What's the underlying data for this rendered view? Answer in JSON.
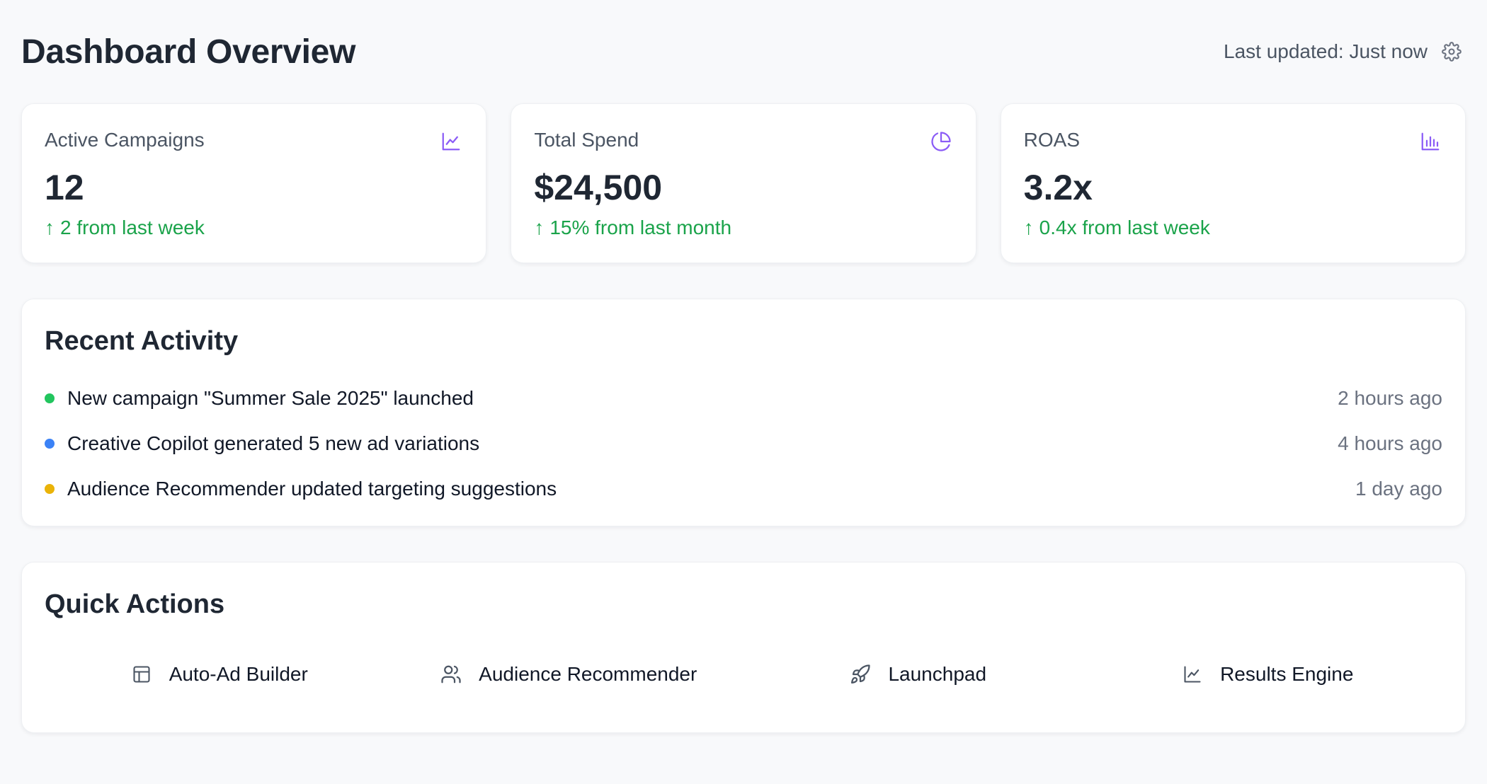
{
  "header": {
    "title": "Dashboard Overview",
    "last_updated": "Last updated: Just now",
    "settings_icon": "gear-icon"
  },
  "stats": [
    {
      "label": "Active Campaigns",
      "value": "12",
      "change": "2 from last week",
      "trend": "up",
      "icon": "line-chart-icon"
    },
    {
      "label": "Total Spend",
      "value": "$24,500",
      "change": "15% from last month",
      "trend": "up",
      "icon": "pie-chart-icon"
    },
    {
      "label": "ROAS",
      "value": "3.2x",
      "change": "0.4x from last week",
      "trend": "up",
      "icon": "bar-chart-icon"
    }
  ],
  "activity": {
    "title": "Recent Activity",
    "items": [
      {
        "text": "New campaign \"Summer Sale 2025\" launched",
        "time": "2 hours ago",
        "color": "#22c55e"
      },
      {
        "text": "Creative Copilot generated 5 new ad variations",
        "time": "4 hours ago",
        "color": "#3b82f6"
      },
      {
        "text": "Audience Recommender updated targeting suggestions",
        "time": "1 day ago",
        "color": "#eab308"
      }
    ]
  },
  "quick_actions": {
    "title": "Quick Actions",
    "items": [
      {
        "label": "Auto-Ad Builder",
        "icon": "layout-icon"
      },
      {
        "label": "Audience Recommender",
        "icon": "users-icon"
      },
      {
        "label": "Launchpad",
        "icon": "rocket-icon"
      },
      {
        "label": "Results Engine",
        "icon": "line-chart-icon"
      }
    ]
  },
  "colors": {
    "accent": "#8b5cf6",
    "positive": "#1aa34a",
    "background": "#f8f9fb"
  }
}
